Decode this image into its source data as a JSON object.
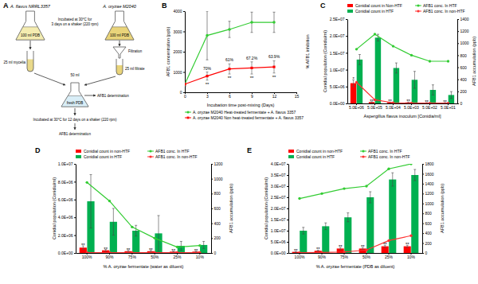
{
  "diagram": {
    "panel": "A",
    "flasks": [
      {
        "organism": "A. flavus NRRL3357",
        "content": "100 ml PDB"
      },
      {
        "organism": "A. oryzae M2040",
        "content": "100 ml PDB"
      }
    ],
    "step1": [
      "Incubated at 30°C for",
      "3 days on a shaker (220 rpm)"
    ],
    "mycelia": "25 ml mycelia",
    "filtration": "Filtration",
    "filtrate": "25 ml filtrate",
    "volume": "50 ml",
    "mix": "fresh PDB",
    "measure1": "AFB1 determination",
    "step2": "Incubated at 30°C for 12 days on a shaker (220 rpm)",
    "measure2": "AFB1 determination"
  },
  "chart_data": [
    {
      "panel": "B",
      "type": "line",
      "x_label": "Incubation time post-mixing (Days)",
      "y_label": "AFB1 concentration (ppb)",
      "y2_label": "% AFB1 inhibition",
      "x": [
        0,
        3,
        6,
        9,
        12
      ],
      "series": [
        {
          "name": "A. oryzae M2040 Heat-treated fermentate + A. flavus 3357",
          "color": "#33cc33",
          "marker": "circle",
          "values": [
            400,
            2800,
            3100,
            3450,
            3450
          ],
          "errors": [
            100,
            1200,
            400,
            500,
            500
          ]
        },
        {
          "name": "A. oryzae M2040 Non heat-treated fermentate + A. flavus 3357",
          "color": "#ff0000",
          "marker": "square",
          "values": [
            400,
            800,
            1150,
            1200,
            1250
          ],
          "errors": [
            100,
            200,
            250,
            300,
            300
          ]
        }
      ],
      "xlim": [
        0,
        15
      ],
      "xticks": [
        0,
        3,
        6,
        9,
        12,
        15
      ],
      "ylim": [
        0,
        4000
      ],
      "yticks": [
        0,
        1000,
        2000,
        3000,
        4000
      ],
      "annotations": [
        {
          "x": 3,
          "text": "70%"
        },
        {
          "x": 6,
          "text": "61%"
        },
        {
          "x": 9,
          "text": "67.2%"
        },
        {
          "x": 12,
          "text": "63.9%"
        }
      ],
      "significance": [
        null,
        "**",
        "**",
        "**",
        "**"
      ],
      "legend": "bottom"
    },
    {
      "panel": "C",
      "type": "bar",
      "x_label": "Aspergillus flavus inoculum [Conidia/ml]",
      "y_label": "Conidial population (Conidia/ml)",
      "y2_label": "AFB1 accumulation (ppb)",
      "categories": [
        "5.0E+06",
        "5.0E+05",
        "5.0E+04",
        "5.0E+03",
        "5.0E+02",
        "5.0E+01"
      ],
      "series": [
        {
          "name": "Conidial count in Non-HTF",
          "type": "bar",
          "color": "#ff0000",
          "values": [
            6000000,
            400000,
            300000,
            300000,
            200000,
            200000
          ],
          "errors": [
            1000000,
            100000,
            100000,
            100000,
            50000,
            50000
          ]
        },
        {
          "name": "Conidial count in HTF",
          "type": "bar",
          "color": "#00b050",
          "values": [
            13000000,
            19500000,
            10500000,
            7000000,
            4000000,
            2500000
          ],
          "errors": [
            1500000,
            1000000,
            1500000,
            2500000,
            1500000,
            1000000
          ]
        },
        {
          "name": "AFB1 conc. In HTF",
          "type": "line",
          "axis": "y2",
          "color": "#33cc33",
          "marker": "circle",
          "values": [
            900,
            1150,
            950,
            800,
            700,
            700
          ]
        },
        {
          "name": "AFB1 conc. In non-HTF",
          "type": "line",
          "axis": "y2",
          "color": "#ff3333",
          "marker": "circle",
          "values": [
            350,
            60,
            10,
            5,
            5,
            5
          ]
        }
      ],
      "ylim": [
        0,
        25000000
      ],
      "yticks": [
        {
          "value": 0,
          "label": "0.0E+00"
        },
        {
          "value": 5000000,
          "label": "5.0E+06"
        },
        {
          "value": 10000000,
          "label": "1.0E+07"
        },
        {
          "value": 15000000,
          "label": "1.5E+07"
        },
        {
          "value": 20000000,
          "label": "2.0E+07"
        },
        {
          "value": 25000000,
          "label": "2.5E+07"
        }
      ],
      "y2lim": [
        0,
        1400
      ],
      "y2ticks": [
        0,
        200,
        400,
        600,
        800,
        1000,
        1200,
        1400
      ],
      "significance": [
        "*",
        "**",
        "**",
        "**",
        "**",
        "**"
      ],
      "legend": "top"
    },
    {
      "panel": "D",
      "type": "bar",
      "x_label": "% A. oryzae fermentate (water as diluent)",
      "y_label": "Conidial population (Conidia/ml)",
      "y2_label": "AFB1 accumulation (ppb)",
      "categories": [
        "100%",
        "90%",
        "75%",
        "50%",
        "25%",
        "10%"
      ],
      "series": [
        {
          "name": "Conidial count in non-HTF",
          "type": "bar",
          "color": "#ff0000",
          "values": [
            600000,
            300000,
            200000,
            200000,
            150000,
            150000
          ],
          "errors": [
            200000,
            100000,
            100000,
            100000,
            50000,
            50000
          ]
        },
        {
          "name": "Conidial count in HTF",
          "type": "bar",
          "color": "#00b050",
          "values": [
            5800000,
            3500000,
            2500000,
            2200000,
            800000,
            900000
          ],
          "errors": [
            3000000,
            1500000,
            600000,
            2000000,
            500000,
            400000
          ]
        },
        {
          "name": "AFB1 conc. In HTF",
          "type": "line",
          "axis": "y2",
          "color": "#33cc33",
          "marker": "circle",
          "values": [
            950,
            700,
            350,
            200,
            80,
            100
          ]
        },
        {
          "name": "AFB1 conc. In non-HTF",
          "type": "line",
          "axis": "y2",
          "color": "#ff3333",
          "marker": "circle",
          "values": [
            5,
            5,
            5,
            5,
            5,
            5
          ]
        }
      ],
      "ylim": [
        0,
        10000000
      ],
      "yticks": [
        {
          "value": 0,
          "label": "0.0E+00"
        },
        {
          "value": 2000000,
          "label": "2.0E+06"
        },
        {
          "value": 4000000,
          "label": "4.0E+06"
        },
        {
          "value": 6000000,
          "label": "6.0E+06"
        },
        {
          "value": 8000000,
          "label": "8.0E+06"
        },
        {
          "value": 10000000,
          "label": "1.0E+07"
        }
      ],
      "y2lim": [
        0,
        1200
      ],
      "y2ticks": [
        0,
        200,
        400,
        600,
        800,
        1000,
        1200
      ],
      "significance": [
        "**",
        "**",
        "**",
        "**",
        "**",
        "**"
      ],
      "legend": "top"
    },
    {
      "panel": "E",
      "type": "bar",
      "x_label": "% A. oryzae fermentate (PDB as diluent)",
      "y_label": "Conidial population (Conidia/ml)",
      "y2_label": "AFB1 accumulation (ppb)",
      "categories": [
        "100%",
        "90%",
        "75%",
        "50%",
        "25%",
        "10%"
      ],
      "series": [
        {
          "name": "Conidial count in non-HTF",
          "type": "bar",
          "color": "#ff0000",
          "values": [
            500000,
            1000000,
            2000000,
            2000000,
            3000000,
            3000000
          ],
          "errors": [
            200000,
            300000,
            500000,
            500000,
            500000,
            500000
          ]
        },
        {
          "name": "Conidial count in HTF",
          "type": "bar",
          "color": "#00b050",
          "values": [
            10000000,
            12000000,
            16000000,
            25000000,
            33000000,
            35000000
          ],
          "errors": [
            1500000,
            1500000,
            2000000,
            2500000,
            3000000,
            2500000
          ]
        },
        {
          "name": "AFB1 conc. In HTF",
          "type": "line",
          "axis": "y2",
          "color": "#33cc33",
          "marker": "circle",
          "values": [
            1100,
            1200,
            1300,
            1350,
            1700,
            1800
          ]
        },
        {
          "name": "AFB1 conc. In non-HTF",
          "type": "line",
          "axis": "y2",
          "color": "#ff3333",
          "marker": "circle",
          "values": [
            5,
            10,
            20,
            60,
            250,
            350
          ]
        }
      ],
      "ylim": [
        0,
        40000000
      ],
      "yticks": [
        {
          "value": 0,
          "label": "0.0E+00"
        },
        {
          "value": 5000000,
          "label": "5.0E+06"
        },
        {
          "value": 10000000,
          "label": "1.0E+07"
        },
        {
          "value": 15000000,
          "label": "1.5E+07"
        },
        {
          "value": 20000000,
          "label": "2.0E+07"
        },
        {
          "value": 25000000,
          "label": "2.5E+07"
        },
        {
          "value": 30000000,
          "label": "3.0E+07"
        },
        {
          "value": 35000000,
          "label": "3.5E+07"
        },
        {
          "value": 40000000,
          "label": "4.0E+07"
        }
      ],
      "y2lim": [
        0,
        1800
      ],
      "y2ticks": [
        0,
        200,
        400,
        600,
        800,
        1000,
        1200,
        1400,
        1600,
        1800
      ],
      "significance": [
        "**",
        "**",
        "**",
        "**",
        "**",
        "**"
      ],
      "legend": "top"
    }
  ]
}
